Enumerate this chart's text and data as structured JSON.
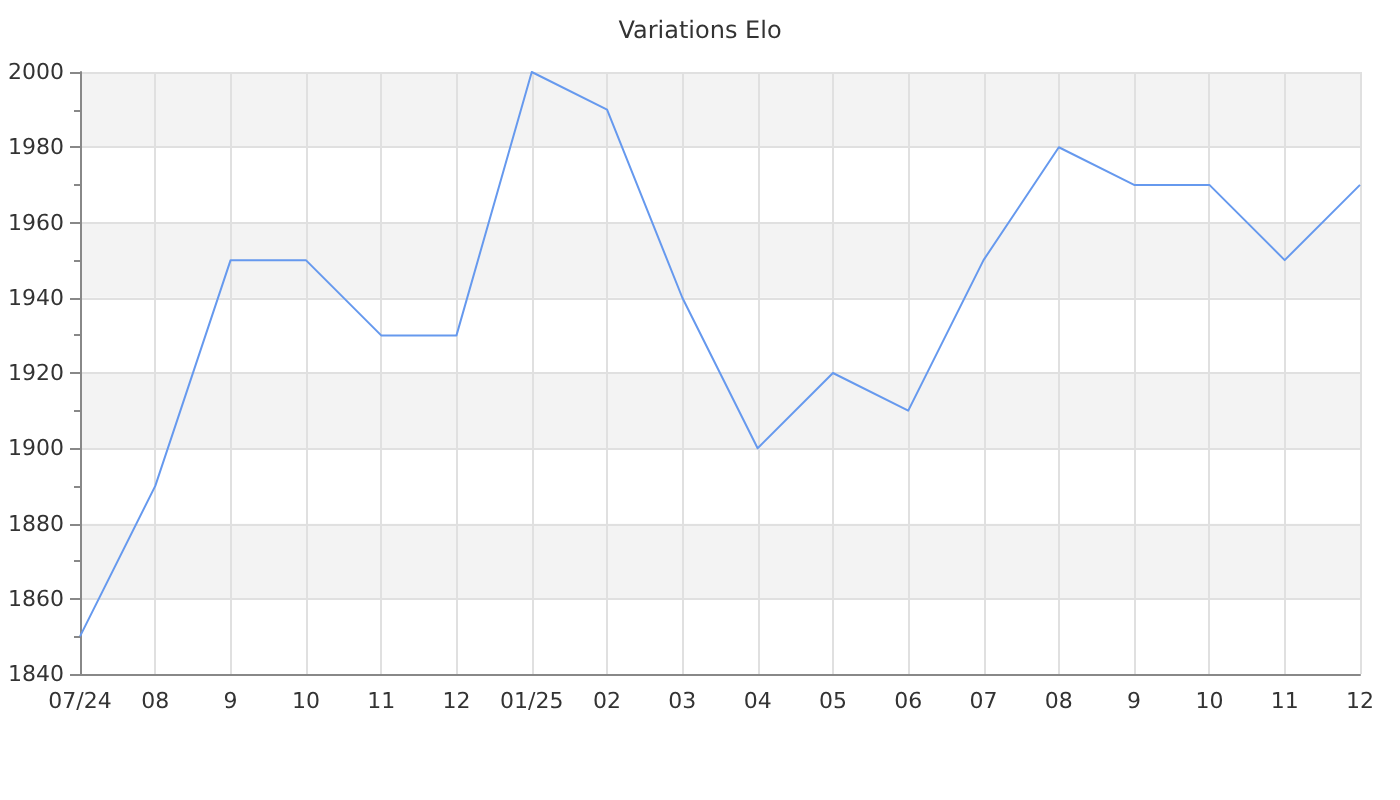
{
  "chart_data": {
    "type": "line",
    "title": "Variations Elo",
    "categories": [
      "07/24",
      "08",
      "9",
      "10",
      "11",
      "12",
      "01/25",
      "02",
      "03",
      "04",
      "05",
      "06",
      "07",
      "08",
      "9",
      "10",
      "11",
      "12"
    ],
    "series": [
      {
        "color": "#6699ee",
        "values": [
          1850,
          1890,
          1950,
          1950,
          1930,
          1930,
          2000,
          1990,
          1940,
          1900,
          1920,
          1910,
          1950,
          1980,
          1970,
          1970,
          1950,
          1970
        ]
      }
    ],
    "ylim": [
      1840,
      2000
    ],
    "yticks": [
      1840,
      1860,
      1880,
      1900,
      1920,
      1940,
      1960,
      1980,
      2000
    ],
    "grid": true,
    "marker": "none",
    "line_style": "solid"
  }
}
